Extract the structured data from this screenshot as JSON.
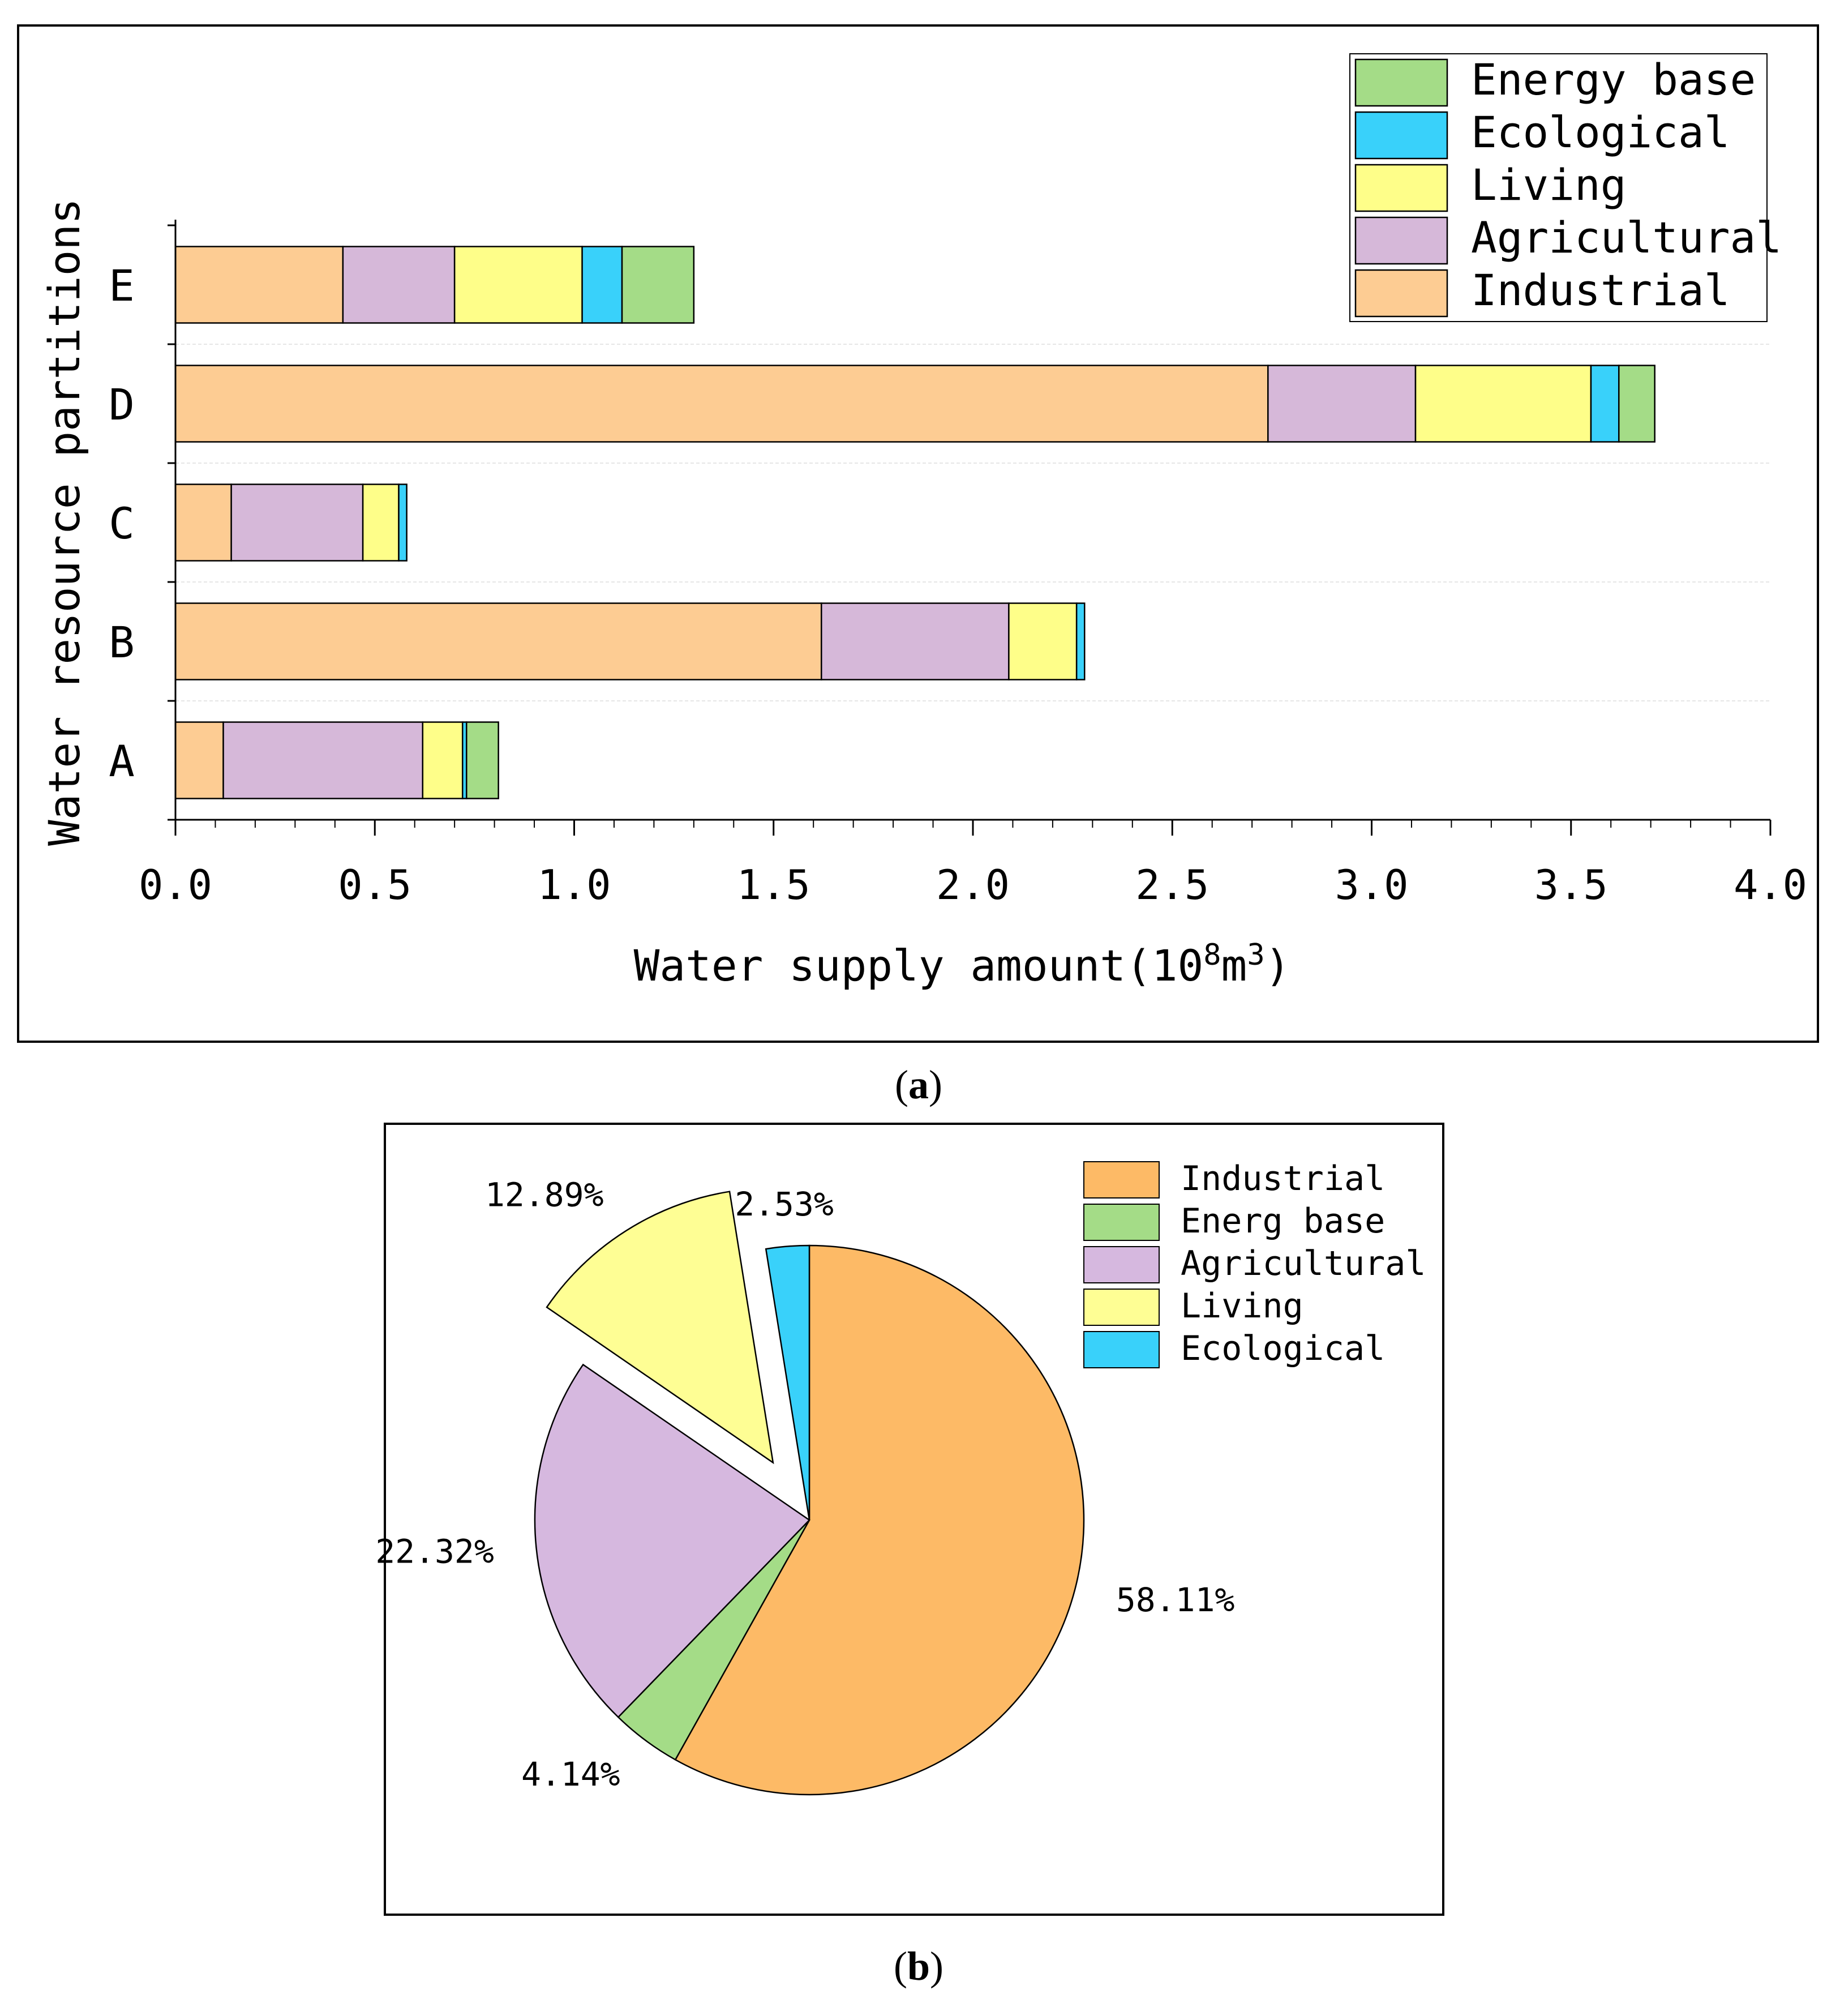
{
  "figure_a": {
    "panel_label": "a",
    "chart_data": {
      "type": "bar",
      "orientation": "horizontal",
      "stacked": true,
      "categories": [
        "A",
        "B",
        "C",
        "D",
        "E"
      ],
      "series": [
        {
          "name": "Industrial",
          "color": "#FDCC93",
          "values": [
            0.12,
            1.62,
            0.14,
            2.74,
            0.42
          ]
        },
        {
          "name": "Agricultural",
          "color": "#D6B8D9",
          "values": [
            0.5,
            0.47,
            0.33,
            0.37,
            0.28
          ]
        },
        {
          "name": "Living",
          "color": "#FEFE89",
          "values": [
            0.1,
            0.17,
            0.09,
            0.44,
            0.32
          ]
        },
        {
          "name": "Ecological",
          "color": "#39D1FA",
          "values": [
            0.01,
            0.02,
            0.02,
            0.07,
            0.1
          ]
        },
        {
          "name": "Energy base",
          "color": "#A4DC87",
          "values": [
            0.08,
            0.0,
            0.0,
            0.09,
            0.18
          ]
        }
      ],
      "xlabel_main": "Water supply amount(10",
      "xlabel_sup1": "8",
      "xlabel_mid": "m",
      "xlabel_sup2": "3",
      "xlabel_end": ")",
      "ylabel": "Water resource partitions",
      "xlim": [
        0,
        4.0
      ],
      "xticks": [
        0.0,
        0.5,
        1.0,
        1.5,
        2.0,
        2.5,
        3.0,
        3.5,
        4.0
      ],
      "xtick_labels": [
        "0.0",
        "0.5",
        "1.0",
        "1.5",
        "2.0",
        "2.5",
        "3.0",
        "3.5",
        "4.0"
      ],
      "legend_order": [
        "Energy  base",
        "Ecological",
        "Living",
        "Agricultural",
        "Industrial"
      ],
      "legend_colors": [
        "#A4DC87",
        "#39D1FA",
        "#FEFE89",
        "#D6B8D9",
        "#FDCC93"
      ],
      "legend_position": "top-right"
    }
  },
  "figure_b": {
    "panel_label": "b",
    "chart_data": {
      "type": "pie",
      "slices": [
        {
          "name": "Industrial",
          "value": 58.11,
          "label": "58.11%",
          "color": "#FDBA66",
          "exploded": false
        },
        {
          "name": "Energ base",
          "value": 4.14,
          "label": "4.14%",
          "color": "#A4DC87",
          "exploded": false
        },
        {
          "name": "Agricultural",
          "value": 22.32,
          "label": "22.32%",
          "color": "#D6B8DF",
          "exploded": false
        },
        {
          "name": "Living",
          "value": 12.89,
          "label": "12.89%",
          "color": "#FEFE94",
          "exploded": true
        },
        {
          "name": "Ecological",
          "value": 2.53,
          "label": "2.53%",
          "color": "#39D1FA",
          "exploded": false
        }
      ],
      "legend": [
        "Industrial",
        "Energ base",
        "Agricultural",
        "Living",
        "Ecological"
      ],
      "legend_position": "top-right"
    }
  }
}
